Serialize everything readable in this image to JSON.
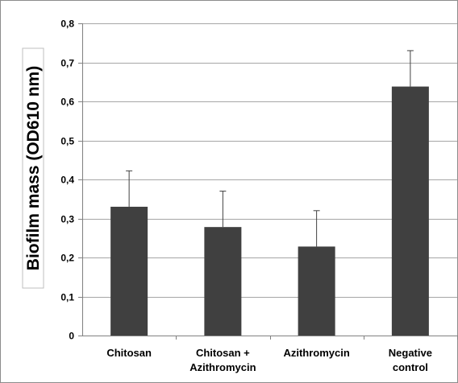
{
  "chart_data": {
    "type": "bar",
    "title": "",
    "xlabel": "",
    "ylabel": "Biofilm mass (OD610 nm)",
    "categories": [
      [
        "Chitosan"
      ],
      [
        "Chitosan +",
        "Azithromycin"
      ],
      [
        "Azithromycin"
      ],
      [
        "Negative",
        "control"
      ]
    ],
    "values": [
      0.33,
      0.278,
      0.228,
      0.638
    ],
    "error_bars": [
      0.092,
      0.092,
      0.092,
      0.092
    ],
    "ylim": [
      0,
      0.8
    ],
    "yticks": [
      0,
      0.1,
      0.2,
      0.3,
      0.4,
      0.5,
      0.6,
      0.7,
      0.8
    ],
    "ytick_labels": [
      "0",
      "0,1",
      "0,2",
      "0,3",
      "0,4",
      "0,5",
      "0,6",
      "0,7",
      "0,8"
    ],
    "grid": true,
    "legend": "none",
    "colors": {
      "bar": "#404040",
      "grid": "#a6a6a6",
      "axis": "#808080",
      "error": "#404040"
    }
  }
}
